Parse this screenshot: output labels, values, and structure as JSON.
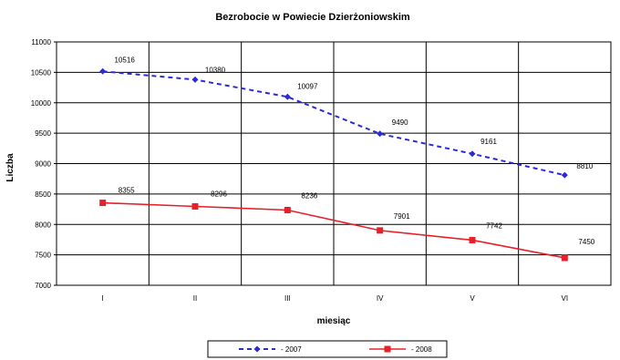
{
  "chart_data": {
    "type": "line",
    "title": "Bezrobocie w Powiecie Dzierżoniowskim",
    "xlabel": "miesiąc",
    "ylabel": "Liczba",
    "categories": [
      "I",
      "II",
      "III",
      "IV",
      "V",
      "VI"
    ],
    "ylim": [
      7000,
      11000
    ],
    "yticks": [
      7000,
      7500,
      8000,
      8500,
      9000,
      9500,
      10000,
      10500,
      11000
    ],
    "grid": true,
    "legend_position": "bottom",
    "series": [
      {
        "name": "2007",
        "values": [
          10516,
          10380,
          10097,
          9490,
          9161,
          8810
        ],
        "labels": [
          "10516",
          "10380",
          "10097",
          "9490",
          "9161",
          "8810"
        ],
        "color": "#2b2bd6",
        "line_style": "dashed",
        "marker": "diamond"
      },
      {
        "name": "2008",
        "values": [
          8355,
          8296,
          8236,
          7901,
          7742,
          7450
        ],
        "labels": [
          "8355",
          "8296",
          "8236",
          "7901",
          "7742",
          "7450"
        ],
        "color": "#e8202a",
        "line_style": "solid",
        "marker": "square"
      }
    ]
  }
}
